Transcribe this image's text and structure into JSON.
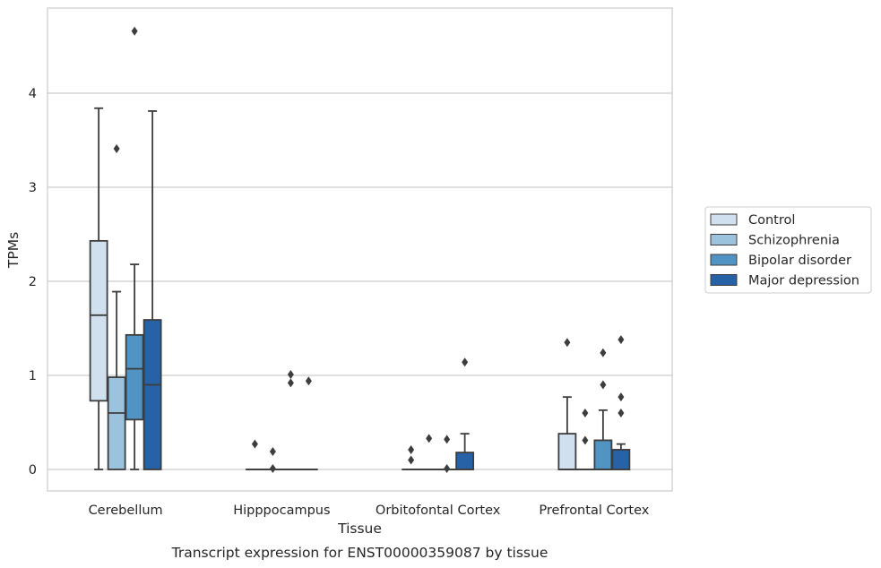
{
  "chart_data": {
    "type": "box",
    "title": "Transcript expression for ENST00000359087 by tissue",
    "xlabel": "Tissue",
    "ylabel": "TPMs",
    "ylim": [
      -0.23,
      4.9
    ],
    "yticks": [
      0,
      1,
      2,
      3,
      4
    ],
    "grid": true,
    "legend_position": "right",
    "categories": [
      "Cerebellum",
      "Hipppocampus",
      "Orbitofontal Cortex",
      "Prefrontal Cortex"
    ],
    "series": [
      {
        "name": "Control",
        "color": "#d1e0ef",
        "boxes": [
          {
            "whisker_low": 0,
            "q1": 0.73,
            "median": 1.64,
            "q3": 2.43,
            "whisker_high": 3.84,
            "outliers": []
          },
          {
            "whisker_low": 0,
            "q1": 0,
            "median": 0,
            "q3": 0,
            "whisker_high": 0,
            "outliers": [
              0.27
            ]
          },
          {
            "whisker_low": 0,
            "q1": 0,
            "median": 0,
            "q3": 0,
            "whisker_high": 0,
            "outliers": [
              0.1,
              0.21
            ]
          },
          {
            "whisker_low": 0,
            "q1": 0,
            "median": 0,
            "q3": 0.38,
            "whisker_high": 0.77,
            "outliers": [
              1.35
            ]
          }
        ]
      },
      {
        "name": "Schizophrenia",
        "color": "#9bc3de",
        "boxes": [
          {
            "whisker_low": 0,
            "q1": 0,
            "median": 0.6,
            "q3": 0.98,
            "whisker_high": 1.89,
            "outliers": [
              3.41
            ]
          },
          {
            "whisker_low": 0,
            "q1": 0,
            "median": 0,
            "q3": 0,
            "whisker_high": 0,
            "outliers": [
              0.01,
              0.19
            ]
          },
          {
            "whisker_low": 0,
            "q1": 0,
            "median": 0,
            "q3": 0,
            "whisker_high": 0,
            "outliers": [
              0.33
            ]
          },
          {
            "whisker_low": 0,
            "q1": 0,
            "median": 0,
            "q3": 0,
            "whisker_high": 0,
            "outliers": [
              0.31,
              0.6
            ]
          }
        ]
      },
      {
        "name": "Bipolar disorder",
        "color": "#5193c2",
        "boxes": [
          {
            "whisker_low": 0,
            "q1": 0.53,
            "median": 1.07,
            "q3": 1.43,
            "whisker_high": 2.18,
            "outliers": [
              4.66
            ]
          },
          {
            "whisker_low": 0,
            "q1": 0,
            "median": 0,
            "q3": 0,
            "whisker_high": 0,
            "outliers": [
              0.92,
              1.01
            ]
          },
          {
            "whisker_low": 0,
            "q1": 0,
            "median": 0,
            "q3": 0,
            "whisker_high": 0,
            "outliers": [
              0.01,
              0.32
            ]
          },
          {
            "whisker_low": 0,
            "q1": 0,
            "median": 0,
            "q3": 0.31,
            "whisker_high": 0.63,
            "outliers": [
              0.9,
              1.24
            ]
          }
        ]
      },
      {
        "name": "Major depression",
        "color": "#2662a5",
        "boxes": [
          {
            "whisker_low": 0,
            "q1": 0,
            "median": 0.9,
            "q3": 1.59,
            "whisker_high": 3.81,
            "outliers": []
          },
          {
            "whisker_low": 0,
            "q1": 0,
            "median": 0,
            "q3": 0,
            "whisker_high": 0,
            "outliers": [
              0.94
            ]
          },
          {
            "whisker_low": 0,
            "q1": 0,
            "median": 0,
            "q3": 0.18,
            "whisker_high": 0.38,
            "outliers": [
              1.14
            ]
          },
          {
            "whisker_low": 0,
            "q1": 0,
            "median": 0,
            "q3": 0.21,
            "whisker_high": 0.27,
            "outliers": [
              0.6,
              0.77,
              1.38
            ]
          }
        ]
      }
    ]
  }
}
